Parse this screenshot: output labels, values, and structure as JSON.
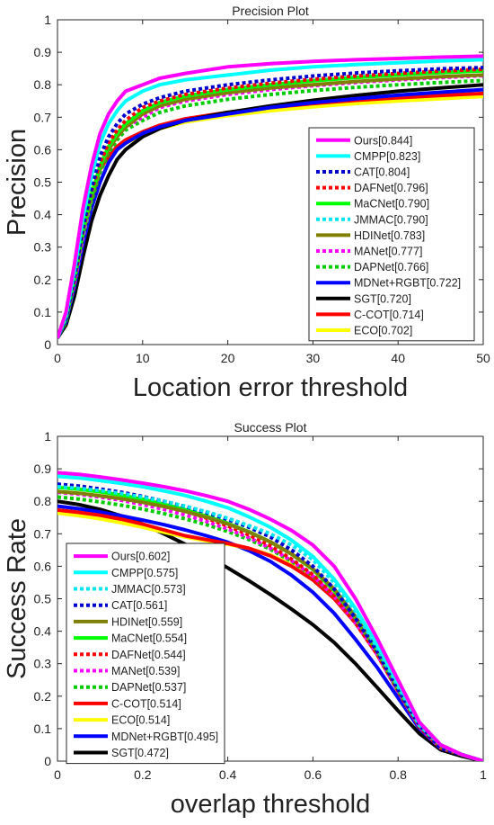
{
  "chart_data": [
    {
      "type": "line",
      "title": "Precision Plot",
      "xlabel": "Location error threshold",
      "ylabel": "Precision",
      "xlim": [
        0,
        50
      ],
      "ylim": [
        0,
        1
      ],
      "xticks": [
        "0",
        "10",
        "20",
        "30",
        "40",
        "50"
      ],
      "yticks": [
        "0",
        "0.1",
        "0.2",
        "0.3",
        "0.4",
        "0.5",
        "0.6",
        "0.7",
        "0.8",
        "0.9",
        "1"
      ],
      "legend_position": "bottom-right",
      "x": [
        0,
        1,
        2,
        3,
        4,
        5,
        6,
        7,
        8,
        10,
        12,
        15,
        20,
        25,
        30,
        35,
        40,
        45,
        50
      ],
      "series": [
        {
          "name": "Ours[0.844]",
          "color": "#ff00ff",
          "style": "solid",
          "values": [
            0.02,
            0.1,
            0.25,
            0.42,
            0.55,
            0.65,
            0.71,
            0.75,
            0.78,
            0.8,
            0.82,
            0.835,
            0.855,
            0.865,
            0.872,
            0.877,
            0.881,
            0.885,
            0.888
          ]
        },
        {
          "name": "CMPP[0.823]",
          "color": "#00ffff",
          "style": "solid",
          "values": [
            0.02,
            0.09,
            0.23,
            0.39,
            0.52,
            0.62,
            0.68,
            0.72,
            0.75,
            0.78,
            0.8,
            0.815,
            0.83,
            0.845,
            0.855,
            0.862,
            0.868,
            0.873,
            0.877
          ]
        },
        {
          "name": "CAT[0.804]",
          "color": "#0000cc",
          "style": "dotted",
          "values": [
            0.02,
            0.08,
            0.21,
            0.36,
            0.48,
            0.58,
            0.64,
            0.68,
            0.71,
            0.74,
            0.76,
            0.78,
            0.8,
            0.815,
            0.827,
            0.836,
            0.843,
            0.849,
            0.853
          ]
        },
        {
          "name": "DAFNet[0.796]",
          "color": "#ff0000",
          "style": "dotted",
          "values": [
            0.02,
            0.08,
            0.2,
            0.35,
            0.47,
            0.56,
            0.62,
            0.66,
            0.69,
            0.73,
            0.75,
            0.77,
            0.79,
            0.805,
            0.817,
            0.827,
            0.835,
            0.842,
            0.848
          ]
        },
        {
          "name": "MaCNet[0.790]",
          "color": "#00ff00",
          "style": "solid",
          "values": [
            0.02,
            0.08,
            0.2,
            0.35,
            0.46,
            0.55,
            0.61,
            0.65,
            0.68,
            0.72,
            0.745,
            0.765,
            0.785,
            0.8,
            0.812,
            0.822,
            0.83,
            0.837,
            0.843
          ]
        },
        {
          "name": "JMMAC[0.790]",
          "color": "#00e5ee",
          "style": "dotted",
          "values": [
            0.02,
            0.08,
            0.2,
            0.34,
            0.46,
            0.55,
            0.61,
            0.65,
            0.68,
            0.72,
            0.745,
            0.765,
            0.785,
            0.8,
            0.813,
            0.823,
            0.832,
            0.839,
            0.845
          ]
        },
        {
          "name": "HDINet[0.783]",
          "color": "#808000",
          "style": "solid",
          "values": [
            0.02,
            0.08,
            0.2,
            0.34,
            0.45,
            0.54,
            0.6,
            0.64,
            0.67,
            0.71,
            0.735,
            0.755,
            0.775,
            0.79,
            0.8,
            0.81,
            0.818,
            0.825,
            0.83
          ]
        },
        {
          "name": "MANet[0.777]",
          "color": "#ff00ff",
          "style": "dotted",
          "values": [
            0.02,
            0.08,
            0.19,
            0.33,
            0.45,
            0.54,
            0.6,
            0.64,
            0.67,
            0.7,
            0.73,
            0.75,
            0.77,
            0.785,
            0.797,
            0.807,
            0.815,
            0.822,
            0.828
          ]
        },
        {
          "name": "DAPNet[0.766]",
          "color": "#00cc00",
          "style": "dotted",
          "values": [
            0.02,
            0.07,
            0.19,
            0.33,
            0.44,
            0.53,
            0.59,
            0.63,
            0.66,
            0.69,
            0.715,
            0.735,
            0.755,
            0.77,
            0.782,
            0.792,
            0.8,
            0.807,
            0.813
          ]
        },
        {
          "name": "MDNet+RGBT[0.722]",
          "color": "#0000ff",
          "style": "solid",
          "values": [
            0.02,
            0.07,
            0.18,
            0.31,
            0.42,
            0.5,
            0.56,
            0.6,
            0.62,
            0.65,
            0.67,
            0.69,
            0.71,
            0.73,
            0.745,
            0.757,
            0.768,
            0.777,
            0.785
          ]
        },
        {
          "name": "SGT[0.720]",
          "color": "#000000",
          "style": "solid",
          "values": [
            0.02,
            0.06,
            0.15,
            0.27,
            0.38,
            0.46,
            0.52,
            0.57,
            0.6,
            0.64,
            0.665,
            0.69,
            0.715,
            0.735,
            0.752,
            0.767,
            0.78,
            0.79,
            0.8
          ]
        },
        {
          "name": "C-COT[0.714]",
          "color": "#ff0000",
          "style": "solid",
          "values": [
            0.02,
            0.08,
            0.21,
            0.36,
            0.46,
            0.54,
            0.58,
            0.61,
            0.63,
            0.655,
            0.675,
            0.695,
            0.715,
            0.73,
            0.742,
            0.752,
            0.76,
            0.767,
            0.773
          ]
        },
        {
          "name": "ECO[0.702]",
          "color": "#ffff00",
          "style": "solid",
          "values": [
            0.02,
            0.09,
            0.22,
            0.37,
            0.47,
            0.54,
            0.58,
            0.6,
            0.62,
            0.645,
            0.665,
            0.685,
            0.705,
            0.72,
            0.732,
            0.742,
            0.75,
            0.757,
            0.764
          ]
        }
      ]
    },
    {
      "type": "line",
      "title": "Success Plot",
      "xlabel": "overlap threshold",
      "ylabel": "Success Rate",
      "xlim": [
        0,
        1
      ],
      "ylim": [
        0,
        1
      ],
      "xticks": [
        "0",
        "0.2",
        "0.4",
        "0.6",
        "0.8",
        "1"
      ],
      "yticks": [
        "0",
        "0.1",
        "0.2",
        "0.3",
        "0.4",
        "0.5",
        "0.6",
        "0.7",
        "0.8",
        "0.9",
        "1"
      ],
      "legend_position": "bottom-left",
      "x": [
        0,
        0.05,
        0.1,
        0.15,
        0.2,
        0.25,
        0.3,
        0.35,
        0.4,
        0.45,
        0.5,
        0.55,
        0.6,
        0.65,
        0.7,
        0.75,
        0.8,
        0.85,
        0.9,
        0.95,
        1.0
      ],
      "series": [
        {
          "name": "Ours[0.602]",
          "color": "#ff00ff",
          "style": "solid",
          "values": [
            0.888,
            0.883,
            0.875,
            0.866,
            0.856,
            0.845,
            0.832,
            0.817,
            0.8,
            0.775,
            0.745,
            0.71,
            0.665,
            0.6,
            0.5,
            0.38,
            0.25,
            0.12,
            0.05,
            0.02,
            0.0
          ]
        },
        {
          "name": "CMPP[0.575]",
          "color": "#00ffff",
          "style": "solid",
          "values": [
            0.877,
            0.872,
            0.864,
            0.855,
            0.845,
            0.832,
            0.818,
            0.8,
            0.78,
            0.752,
            0.72,
            0.68,
            0.63,
            0.56,
            0.47,
            0.36,
            0.24,
            0.12,
            0.05,
            0.02,
            0.0
          ]
        },
        {
          "name": "JMMAC[0.573]",
          "color": "#00e5ee",
          "style": "dotted",
          "values": [
            0.845,
            0.84,
            0.833,
            0.824,
            0.813,
            0.8,
            0.785,
            0.768,
            0.748,
            0.725,
            0.7,
            0.665,
            0.62,
            0.55,
            0.46,
            0.35,
            0.23,
            0.11,
            0.05,
            0.02,
            0.0
          ]
        },
        {
          "name": "CAT[0.561]",
          "color": "#0000cc",
          "style": "dotted",
          "values": [
            0.853,
            0.847,
            0.838,
            0.828,
            0.815,
            0.8,
            0.784,
            0.765,
            0.744,
            0.72,
            0.69,
            0.65,
            0.6,
            0.53,
            0.44,
            0.34,
            0.22,
            0.11,
            0.04,
            0.02,
            0.0
          ]
        },
        {
          "name": "HDINet[0.559]",
          "color": "#808000",
          "style": "solid",
          "values": [
            0.83,
            0.825,
            0.817,
            0.808,
            0.797,
            0.784,
            0.769,
            0.751,
            0.73,
            0.705,
            0.675,
            0.638,
            0.592,
            0.53,
            0.445,
            0.345,
            0.225,
            0.11,
            0.045,
            0.02,
            0.0
          ]
        },
        {
          "name": "MaCNet[0.554]",
          "color": "#00ff00",
          "style": "solid",
          "values": [
            0.843,
            0.837,
            0.829,
            0.819,
            0.806,
            0.791,
            0.774,
            0.754,
            0.732,
            0.706,
            0.675,
            0.637,
            0.59,
            0.525,
            0.44,
            0.34,
            0.22,
            0.11,
            0.045,
            0.02,
            0.0
          ]
        },
        {
          "name": "DAFNet[0.544]",
          "color": "#ff0000",
          "style": "dotted",
          "values": [
            0.848,
            0.842,
            0.832,
            0.82,
            0.806,
            0.789,
            0.77,
            0.748,
            0.724,
            0.696,
            0.663,
            0.622,
            0.574,
            0.51,
            0.425,
            0.33,
            0.215,
            0.105,
            0.04,
            0.02,
            0.0
          ]
        },
        {
          "name": "MANet[0.539]",
          "color": "#ff00ff",
          "style": "dotted",
          "values": [
            0.828,
            0.822,
            0.813,
            0.803,
            0.79,
            0.775,
            0.758,
            0.738,
            0.715,
            0.688,
            0.656,
            0.617,
            0.57,
            0.507,
            0.425,
            0.33,
            0.215,
            0.105,
            0.04,
            0.02,
            0.0
          ]
        },
        {
          "name": "DAPNet[0.537]",
          "color": "#00cc00",
          "style": "dotted",
          "values": [
            0.813,
            0.807,
            0.798,
            0.788,
            0.776,
            0.762,
            0.746,
            0.728,
            0.707,
            0.682,
            0.652,
            0.615,
            0.57,
            0.508,
            0.425,
            0.33,
            0.215,
            0.105,
            0.04,
            0.02,
            0.0
          ]
        },
        {
          "name": "C-COT[0.514]",
          "color": "#ff0000",
          "style": "solid",
          "values": [
            0.773,
            0.766,
            0.757,
            0.745,
            0.73,
            0.712,
            0.694,
            0.682,
            0.67,
            0.655,
            0.632,
            0.6,
            0.558,
            0.5,
            0.425,
            0.335,
            0.225,
            0.115,
            0.05,
            0.02,
            0.0
          ]
        },
        {
          "name": "ECO[0.514]",
          "color": "#ffff00",
          "style": "solid",
          "values": [
            0.764,
            0.756,
            0.746,
            0.734,
            0.72,
            0.705,
            0.69,
            0.678,
            0.668,
            0.655,
            0.635,
            0.605,
            0.565,
            0.51,
            0.435,
            0.345,
            0.235,
            0.12,
            0.05,
            0.02,
            0.0
          ]
        },
        {
          "name": "MDNet+RGBT[0.495]",
          "color": "#0000ff",
          "style": "solid",
          "values": [
            0.785,
            0.777,
            0.767,
            0.755,
            0.742,
            0.728,
            0.712,
            0.694,
            0.674,
            0.648,
            0.615,
            0.572,
            0.52,
            0.455,
            0.375,
            0.29,
            0.195,
            0.1,
            0.04,
            0.02,
            0.0
          ]
        },
        {
          "name": "SGT[0.472]",
          "color": "#000000",
          "style": "solid",
          "values": [
            0.8,
            0.79,
            0.775,
            0.755,
            0.73,
            0.7,
            0.668,
            0.633,
            0.595,
            0.555,
            0.513,
            0.468,
            0.42,
            0.365,
            0.3,
            0.228,
            0.155,
            0.085,
            0.035,
            0.015,
            0.0
          ]
        }
      ]
    }
  ]
}
